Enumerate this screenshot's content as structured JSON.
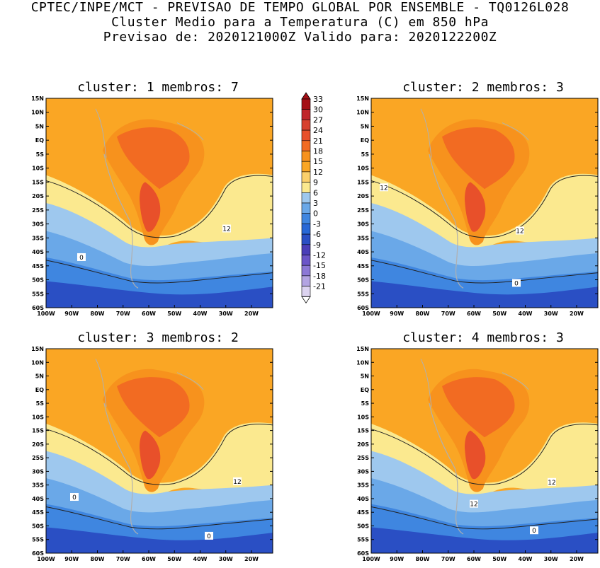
{
  "header": {
    "line1": "CPTEC/INPE/MCT - PREVISAO DE TEMPO GLOBAL POR ENSEMBLE - TQ0126L028",
    "line2": "Cluster Medio para a Temperatura (C) em 850 hPa",
    "line3": "Previsao de: 2020121000Z   Valido para: 2020122200Z"
  },
  "panels": [
    {
      "title": "cluster: 1  membros: 7",
      "contour_labels": [
        "12",
        "0"
      ]
    },
    {
      "title": "cluster: 2  membros: 3",
      "contour_labels": [
        "12",
        "12",
        "0"
      ]
    },
    {
      "title": "cluster: 3  membros: 2",
      "contour_labels": [
        "12",
        "0",
        "0"
      ]
    },
    {
      "title": "cluster: 4  membros: 3",
      "contour_labels": [
        "12",
        "12",
        "0"
      ]
    }
  ],
  "axes": {
    "lat_labels": [
      "15N",
      "10N",
      "5N",
      "EQ",
      "5S",
      "10S",
      "15S",
      "20S",
      "25S",
      "30S",
      "35S",
      "40S",
      "45S",
      "50S",
      "55S",
      "60S"
    ],
    "lon_labels": [
      "100W",
      "90W",
      "80W",
      "70W",
      "60W",
      "50W",
      "40W",
      "30W",
      "20W"
    ]
  },
  "colorbar": {
    "labels": [
      "33",
      "30",
      "27",
      "24",
      "21",
      "18",
      "15",
      "12",
      "9",
      "6",
      "3",
      "0",
      "-3",
      "-6",
      "-9",
      "-12",
      "-15",
      "-18",
      "-21"
    ],
    "colors": [
      "#a50f15",
      "#c0262a",
      "#d7402e",
      "#e8502a",
      "#f26b22",
      "#f7921d",
      "#faa624",
      "#fcd06b",
      "#fbe98f",
      "#9ec8ee",
      "#6aa8e8",
      "#3f86e0",
      "#2868d6",
      "#2a4fc4",
      "#4a3eb8",
      "#6b55c8",
      "#8c78d6",
      "#b3a4e2",
      "#dcd3f0"
    ]
  },
  "map_colors": {
    "land": "#a8a8a8",
    "contour": "#222222"
  }
}
